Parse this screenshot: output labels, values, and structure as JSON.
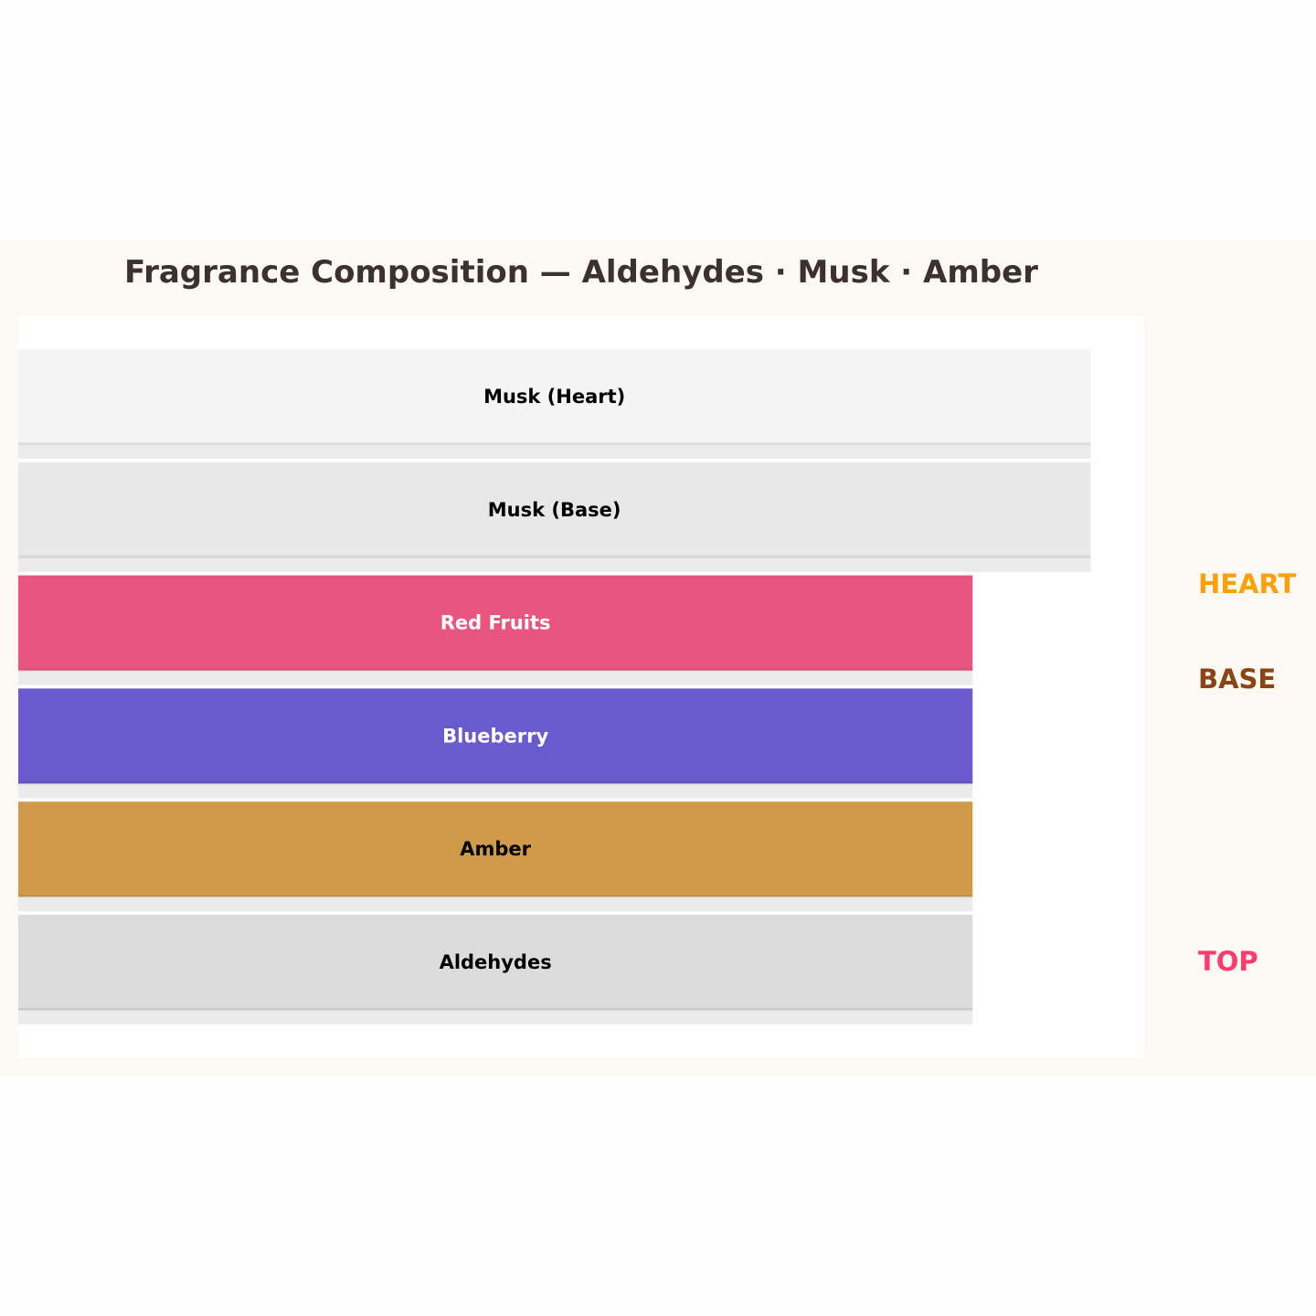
{
  "chart_data": {
    "type": "bar",
    "orientation": "horizontal",
    "title": "Fragrance Composition — Aldehydes · Musk · Amber",
    "xlim": [
      0,
      10.5
    ],
    "grid": false,
    "bars": [
      {
        "label": "Musk (Heart)",
        "value": 10,
        "color": "#f4f4f4",
        "label_color": "#000000"
      },
      {
        "label": "Musk (Base)",
        "value": 10,
        "color": "#e8e8e8",
        "label_color": "#000000"
      },
      {
        "label": "Red Fruits",
        "value": 8.9,
        "color": "#e8557e",
        "label_color": "#ffffff"
      },
      {
        "label": "Blueberry",
        "value": 8.9,
        "color": "#6a5acd",
        "label_color": "#ffffff"
      },
      {
        "label": "Amber",
        "value": 8.9,
        "color": "#d09a4a",
        "label_color": "#000000"
      },
      {
        "label": "Aldehydes",
        "value": 8.9,
        "color": "#dcdcdc",
        "label_color": "#000000"
      }
    ],
    "annotations": [
      {
        "text": "HEART",
        "color": "#ff9f0a"
      },
      {
        "text": "BASE",
        "color": "#8b4513"
      },
      {
        "text": "TOP",
        "color": "#ff3b6b"
      }
    ],
    "colors": {
      "figure_bg": "#fcf9f4",
      "plot_bg": "#ffffff",
      "title": "#3d3030",
      "shadow": "#ebebeb"
    }
  }
}
